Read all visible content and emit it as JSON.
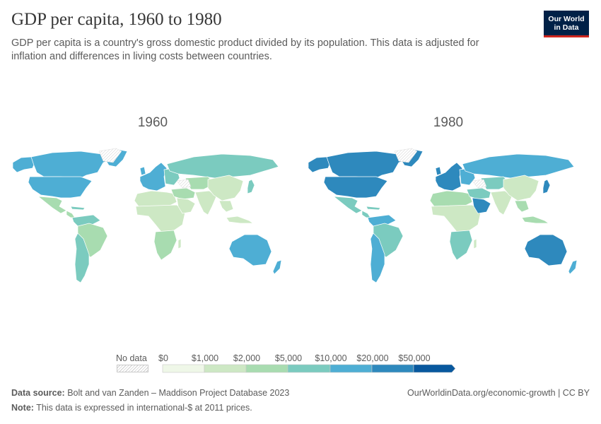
{
  "title": "GDP per capita, 1960 to 1980",
  "subtitle": "GDP per capita is a country's gross domestic product divided by its population. This data is adjusted for inflation and differences in living costs between countries.",
  "logo": {
    "line1": "Our World",
    "line2": "in Data"
  },
  "panels": [
    {
      "year": "1960"
    },
    {
      "year": "1980"
    }
  ],
  "legend": {
    "no_data_label": "No data",
    "bins": [
      "$0",
      "$1,000",
      "$2,000",
      "$5,000",
      "$10,000",
      "$20,000",
      "$50,000"
    ],
    "colors": [
      "#eff7e8",
      "#cde8c4",
      "#a8dcb0",
      "#7bcbbf",
      "#4eaed4",
      "#2e89bd",
      "#08589e"
    ]
  },
  "footer": {
    "source_label": "Data source:",
    "source_text": "Bolt and van Zanden – Maddison Project Database 2023",
    "note_label": "Note:",
    "note_text": "This data is expressed in international-$ at 2011 prices.",
    "link": "OurWorldinData.org/economic-growth | CC BY"
  },
  "map_regions": {
    "1960": {
      "north_america": "#4eaed4",
      "central_america": "#a8dcb0",
      "caribbean": "#7bcbbf",
      "south_america_north": "#7bcbbf",
      "brazil": "#a8dcb0",
      "south_america_south": "#7bcbbf",
      "western_europe": "#4eaed4",
      "eastern_europe": "#7bcbbf",
      "russia": "#7bcbbf",
      "north_africa": "#cde8c4",
      "sub_saharan_africa": "#cde8c4",
      "southern_africa": "#a8dcb0",
      "middle_east": "#a8dcb0",
      "arabian_peninsula": "#cde8c4",
      "central_asia": "#a8dcb0",
      "south_asia": "#cde8c4",
      "china": "#cde8c4",
      "southeast_asia": "#cde8c4",
      "japan": "#7bcbbf",
      "australia": "#4eaed4",
      "new_zealand": "#4eaed4"
    },
    "1980": {
      "north_america": "#2e89bd",
      "central_america": "#7bcbbf",
      "caribbean": "#7bcbbf",
      "south_america_north": "#4eaed4",
      "brazil": "#7bcbbf",
      "south_america_south": "#4eaed4",
      "western_europe": "#2e89bd",
      "eastern_europe": "#4eaed4",
      "russia": "#4eaed4",
      "north_africa": "#a8dcb0",
      "sub_saharan_africa": "#cde8c4",
      "southern_africa": "#7bcbbf",
      "middle_east": "#7bcbbf",
      "arabian_peninsula": "#2e89bd",
      "central_asia": "#7bcbbf",
      "south_asia": "#cde8c4",
      "china": "#cde8c4",
      "southeast_asia": "#a8dcb0",
      "japan": "#2e89bd",
      "australia": "#2e89bd",
      "new_zealand": "#4eaed4"
    }
  }
}
